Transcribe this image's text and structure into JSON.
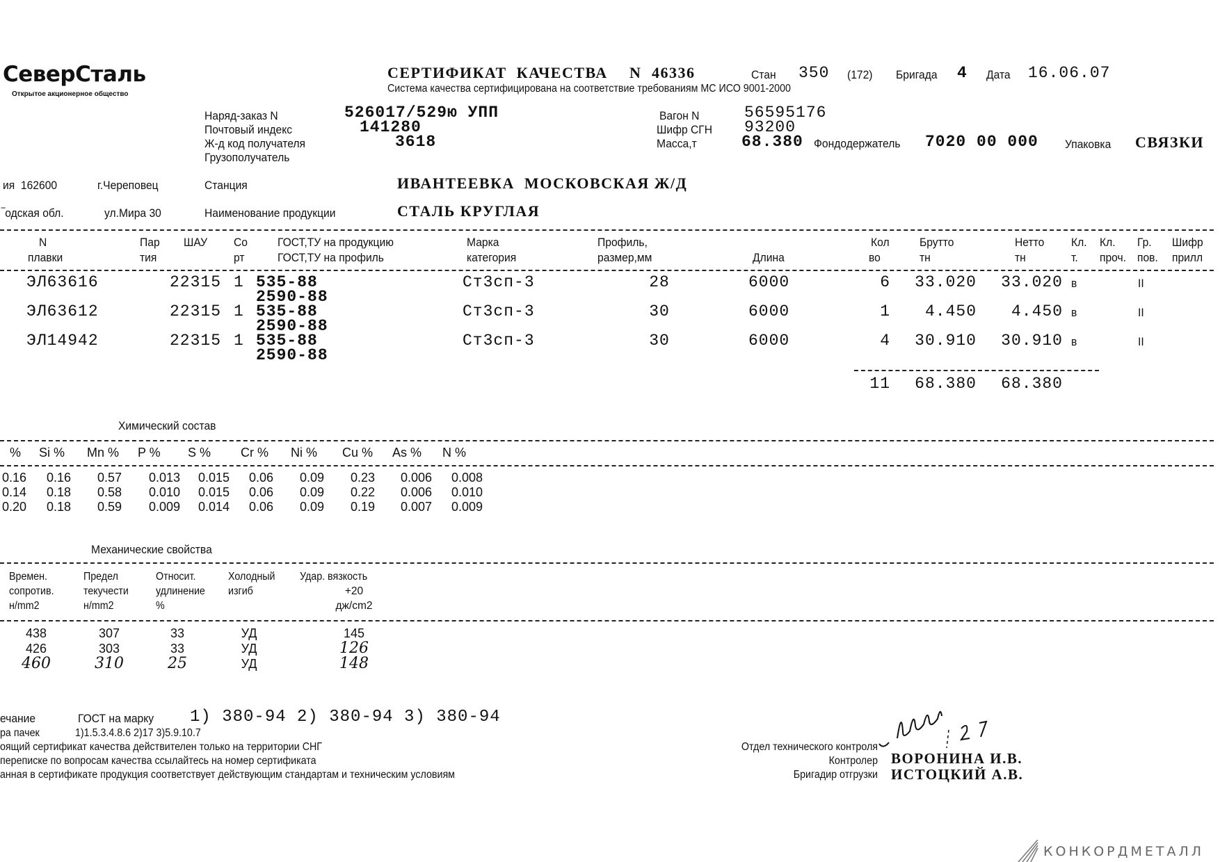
{
  "header": {
    "logo_text": "СеверСталь",
    "logo_subtitle": "Открытое акционерное общество",
    "title": "СЕРТИФИКАТ  КАЧЕСТВА",
    "number_label": "N",
    "number": "46336",
    "mill_label": "Стан",
    "mill": "350",
    "mill_extra": "(172)",
    "brigade_label": "Бригада",
    "brigade": "4",
    "date_label": "Дата",
    "date": "16.06.07",
    "quality_system": "Система качества сертифицирована на соответствие требованиям МС ИСО 9001-2000"
  },
  "order": {
    "order_label": "Наряд-заказ N",
    "order": "526017/529ю УПП",
    "postal_label": "Почтовый индекс",
    "postal": "141280",
    "rail_code_label": "Ж-д код получателя",
    "rail_code": "3618",
    "consignee_label": "Грузополучатель",
    "wagon_label": "Вагон N",
    "wagon": "56595176",
    "sgn_label": "Шифр СГН",
    "sgn": "93200",
    "mass_label": "Масса,т",
    "mass": "68.380",
    "fund_holder_label": "Фондодержатель",
    "fund_holder": "7020 00 000",
    "packing_label": "Упаковка",
    "packing": "СВЯЗКИ"
  },
  "sender": {
    "line1_a": "ия  162600",
    "line1_b": "г.Череповец",
    "line2_a": "‾одская обл.",
    "line2_b": "ул.Мира 30"
  },
  "station_label": "Станция",
  "station": "ИВАНТЕЕВКА  МОСКОВСКАЯ Ж/Д",
  "product_label": "Наименование продукции",
  "product": "СТАЛЬ КРУГЛАЯ",
  "main_table": {
    "headers": [
      {
        "l1": "N",
        "l2": "плавки"
      },
      {
        "l1": "Пар",
        "l2": "тия"
      },
      {
        "l1": "ШАУ",
        "l2": ""
      },
      {
        "l1": "Со",
        "l2": "рт"
      },
      {
        "l1": "ГОСТ,ТУ на продукцию",
        "l2": "ГОСТ,ТУ на профиль"
      },
      {
        "l1": "Марка",
        "l2": "категория"
      },
      {
        "l1": "Профиль,",
        "l2": "размер,мм"
      },
      {
        "l1": "",
        "l2": "Длина"
      },
      {
        "l1": "Кол",
        "l2": "во"
      },
      {
        "l1": "Брутто",
        "l2": "тн"
      },
      {
        "l1": "Нетто",
        "l2": "тн"
      },
      {
        "l1": "Кл.",
        "l2": "т."
      },
      {
        "l1": "Кл.",
        "l2": "проч."
      },
      {
        "l1": "Гр.",
        "l2": "пов."
      },
      {
        "l1": "Шифр",
        "l2": "прилл"
      }
    ],
    "rows": [
      {
        "heat": "ЭЛ63616",
        "lot": "22315",
        "grade_sort": "1",
        "gost_product": "535-88",
        "gost_profile": "2590-88",
        "mark": "Ст3сп-3",
        "size": "28",
        "length": "6000",
        "qty": "6",
        "gross": "33.020",
        "net": "33.020",
        "cls": "в",
        "surface": "II"
      },
      {
        "heat": "ЭЛ63612",
        "lot": "22315",
        "grade_sort": "1",
        "gost_product": "535-88",
        "gost_profile": "2590-88",
        "mark": "Ст3сп-3",
        "size": "30",
        "length": "6000",
        "qty": "1",
        "gross": "4.450",
        "net": "4.450",
        "cls": "в",
        "surface": "II"
      },
      {
        "heat": "ЭЛ14942",
        "lot": "22315",
        "grade_sort": "1",
        "gost_product": "535-88",
        "gost_profile": "2590-88",
        "mark": "Ст3сп-3",
        "size": "30",
        "length": "6000",
        "qty": "4",
        "gross": "30.910",
        "net": "30.910",
        "cls": "в",
        "surface": "II"
      }
    ],
    "totals": {
      "qty": "11",
      "gross": "68.380",
      "net": "68.380"
    }
  },
  "chemistry": {
    "title": "Химический состав",
    "headers": [
      "%",
      "Si %",
      "Mn %",
      "P %",
      "S %",
      "Cr %",
      "Ni %",
      "Cu %",
      "As %",
      "N %"
    ],
    "rows": [
      [
        "0.16",
        "0.16",
        "0.57",
        "0.013",
        "0.015",
        "0.06",
        "0.09",
        "0.23",
        "0.006",
        "0.008"
      ],
      [
        "0.14",
        "0.18",
        "0.58",
        "0.010",
        "0.015",
        "0.06",
        "0.09",
        "0.22",
        "0.006",
        "0.010"
      ],
      [
        "0.20",
        "0.18",
        "0.59",
        "0.009",
        "0.014",
        "0.06",
        "0.09",
        "0.19",
        "0.007",
        "0.009"
      ]
    ]
  },
  "mechanical": {
    "title": "Механические свойства",
    "headers": [
      [
        "Времен.",
        "сопротив.",
        "н/mm2"
      ],
      [
        "Предел",
        "текучести",
        "н/mm2"
      ],
      [
        "Относит.",
        "удлинение",
        "%"
      ],
      [
        "Холодный",
        "изгиб",
        ""
      ],
      [
        "Удар. вязкость",
        "+20",
        "дж/cm2"
      ]
    ],
    "rows": [
      [
        "438",
        "307",
        "33",
        "УД",
        "145"
      ],
      [
        "426",
        "303",
        "33",
        "УД",
        "126"
      ],
      [
        "460",
        "310",
        "25",
        "УД",
        "148"
      ]
    ]
  },
  "notes": {
    "remark_label": "ечание",
    "gost_mark_label": "ГОСТ на марку",
    "gost_mark": "1) 380-94 2) 380-94 3) 380-94",
    "bundles_label": "ра пачек",
    "bundles": "1)1.5.3.4.8.6 2)17 3)5.9.10.7",
    "line1": "оящий сертификат качества действителен только на территории СНГ",
    "line2": "переписке по вопросам качества ссылайтесь на номер сертификата",
    "line3": "анная в сертификате продукция соответствует действующим стандартам и техническим условиям"
  },
  "signatures": {
    "otk_label": "Отдел технического контроля",
    "controller_label": "Контролер",
    "controller": "ВОРОНИНА И.В.",
    "foreman_label": "Бригадир отгрузки",
    "foreman": "ИСТОЦКИЙ А.В."
  },
  "watermark": "КОНКОРДМЕТАЛЛ"
}
